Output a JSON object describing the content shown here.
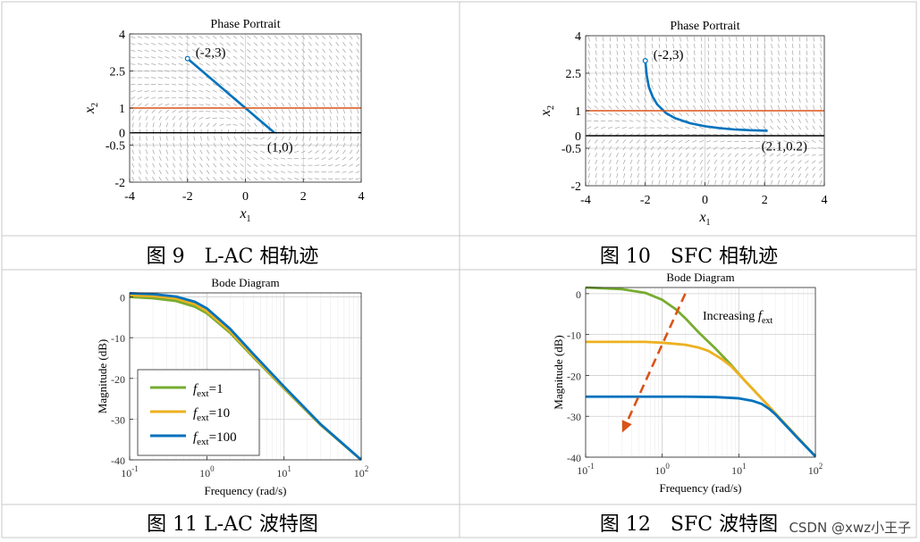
{
  "captions": [
    "图 9　L-AC 相轨迹",
    "图 10　SFC 相轨迹",
    "图 11 L-AC 波特图",
    "图 12　SFC 波特图"
  ],
  "watermark": "CSDN @xwz小王子",
  "colors": {
    "trajectory": "#0072BD",
    "constraint": "#D95319",
    "axis": "#000000",
    "green": "#77AC30",
    "yellow": "#EDB120",
    "blue": "#0072BD",
    "arrow": "#D95319"
  },
  "chart_data": [
    {
      "type": "line",
      "title": "Phase Portrait",
      "xlabel": "x",
      "xlabel_sub": "1",
      "ylabel": "x",
      "ylabel_sub": "2",
      "xlim": [
        -4,
        4
      ],
      "ylim": [
        -2,
        4
      ],
      "xticks": [
        -4,
        -2,
        0,
        2,
        4
      ],
      "yticks": [
        -2,
        -0.5,
        0,
        1,
        2.5,
        4
      ],
      "ytick_labels": [
        "-2",
        "-0.5",
        "0",
        "1",
        "2.5",
        "4"
      ],
      "grid": true,
      "series": [
        {
          "role": "trajectory",
          "x": [
            -2,
            1
          ],
          "y": [
            3,
            0
          ]
        },
        {
          "role": "constraint",
          "x": [
            -4,
            4
          ],
          "y": [
            1,
            1
          ]
        },
        {
          "role": "axis",
          "x": [
            -4,
            4
          ],
          "y": [
            0,
            0
          ]
        }
      ],
      "annotations": [
        {
          "text": "(-2,3)",
          "x": -2,
          "y": 3
        },
        {
          "text": "(1,0)",
          "x": 1,
          "y": 0
        }
      ]
    },
    {
      "type": "line",
      "title": "Phase Portrait",
      "xlabel": "x",
      "xlabel_sub": "1",
      "ylabel": "x",
      "ylabel_sub": "2",
      "xlim": [
        -4,
        4
      ],
      "ylim": [
        -2,
        4
      ],
      "xticks": [
        -4,
        -2,
        0,
        2,
        4
      ],
      "yticks": [
        -2,
        -0.5,
        0,
        1,
        2.5,
        4
      ],
      "ytick_labels": [
        "-2",
        "-0.5",
        "0",
        "1",
        "2.5",
        "4"
      ],
      "grid": true,
      "series": [
        {
          "role": "trajectory",
          "x": [
            -2,
            -1.95,
            -1.88,
            -1.75,
            -1.6,
            -1.3,
            -1,
            -0.5,
            0,
            0.5,
            1,
            1.5,
            2.1
          ],
          "y": [
            3,
            2.4,
            1.95,
            1.55,
            1.25,
            0.9,
            0.7,
            0.5,
            0.38,
            0.3,
            0.25,
            0.22,
            0.2
          ]
        },
        {
          "role": "constraint",
          "x": [
            -4,
            4
          ],
          "y": [
            1,
            1
          ]
        },
        {
          "role": "axis",
          "x": [
            -4,
            4
          ],
          "y": [
            0,
            0
          ]
        }
      ],
      "annotations": [
        {
          "text": "(-2,3)",
          "x": -2,
          "y": 3
        },
        {
          "text": "(2.1,0.2)",
          "x": 2.1,
          "y": 0.2
        }
      ]
    },
    {
      "type": "line",
      "title": "Bode Diagram",
      "xlabel": "Frequency (rad/s)",
      "ylabel": "Magnitude (dB)",
      "xscale": "log",
      "xlim": [
        0.1,
        100
      ],
      "ylim": [
        -40,
        1
      ],
      "xticks": [
        0.1,
        1,
        10,
        100
      ],
      "xtick_bases": [
        "10",
        "10",
        "10",
        "10"
      ],
      "xtick_exps": [
        "-1",
        "0",
        "1",
        "2"
      ],
      "yticks": [
        -40,
        -30,
        -20,
        -10,
        0
      ],
      "grid": true,
      "legend": "inside-left",
      "series": [
        {
          "name": "f",
          "name_sub": "ext",
          "name_suffix": "=1",
          "role": "green",
          "x": [
            0.1,
            0.2,
            0.4,
            0.7,
            1,
            2,
            4,
            10,
            30,
            100
          ],
          "y": [
            0,
            -0.3,
            -1,
            -2.4,
            -4,
            -8.8,
            -14.8,
            -22.5,
            -31.5,
            -40
          ]
        },
        {
          "name": "f",
          "name_sub": "ext",
          "name_suffix": "=10",
          "role": "yellow",
          "x": [
            0.1,
            0.2,
            0.4,
            0.7,
            1,
            2,
            4,
            10,
            30,
            100
          ],
          "y": [
            0.4,
            0.2,
            -0.4,
            -1.8,
            -3.5,
            -8.4,
            -14.5,
            -22.3,
            -31.4,
            -40
          ]
        },
        {
          "name": "f",
          "name_sub": "ext",
          "name_suffix": "=100",
          "role": "blue",
          "x": [
            0.1,
            0.2,
            0.4,
            0.7,
            1,
            2,
            4,
            10,
            30,
            100
          ],
          "y": [
            0.9,
            0.7,
            0.1,
            -1.2,
            -2.8,
            -7.8,
            -14,
            -22,
            -31.3,
            -40
          ]
        }
      ]
    },
    {
      "type": "line",
      "title": "Bode Diagram",
      "xlabel": "Frequency (rad/s)",
      "ylabel": "Magnitude (dB)",
      "xscale": "log",
      "xlim": [
        0.1,
        100
      ],
      "ylim": [
        -40,
        1.5
      ],
      "xticks": [
        0.1,
        1,
        10,
        100
      ],
      "xtick_bases": [
        "10",
        "10",
        "10",
        "10"
      ],
      "xtick_exps": [
        "-1",
        "0",
        "1",
        "2"
      ],
      "yticks": [
        -40,
        -30,
        -20,
        -10,
        0
      ],
      "grid": true,
      "series": [
        {
          "role": "green",
          "x": [
            0.1,
            0.3,
            0.6,
            1,
            1.5,
            2,
            3,
            5,
            8,
            12,
            20,
            40,
            100
          ],
          "y": [
            1.5,
            1.1,
            0.2,
            -1.5,
            -3.8,
            -6,
            -9.5,
            -13.5,
            -17.5,
            -21.3,
            -25.7,
            -31.8,
            -39.8
          ]
        },
        {
          "role": "yellow",
          "x": [
            0.1,
            0.3,
            0.6,
            1,
            2,
            3,
            4,
            6,
            8,
            12,
            20,
            40,
            100
          ],
          "y": [
            -11.8,
            -11.8,
            -11.8,
            -12,
            -12.5,
            -13.2,
            -14,
            -16,
            -17.8,
            -21.3,
            -25.7,
            -31.8,
            -39.8
          ]
        },
        {
          "role": "blue",
          "x": [
            0.1,
            0.5,
            1,
            2,
            5,
            10,
            15,
            20,
            25,
            30,
            40,
            60,
            100
          ],
          "y": [
            -25.2,
            -25.2,
            -25.2,
            -25.2,
            -25.3,
            -25.6,
            -26.2,
            -27,
            -28.2,
            -29.5,
            -32,
            -35.5,
            -39.8
          ]
        }
      ],
      "annotations": [
        {
          "text": "Increasing ",
          "sym": "f",
          "sym_sub": "ext"
        }
      ],
      "arrow": {
        "from": [
          2,
          0
        ],
        "to": [
          0.3,
          -34
        ]
      }
    }
  ]
}
